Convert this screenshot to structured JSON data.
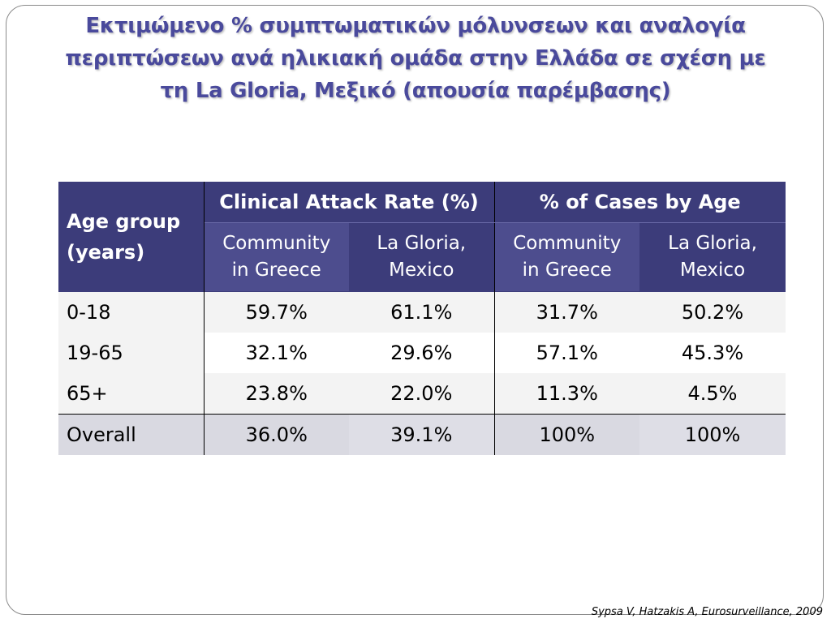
{
  "title_lines": [
    "Εκτιμώμενο % συμπτωματικών μόλυνσεων και αναλογία",
    "περιπτώσεων ανά ηλικιακή ομάδα στην Ελλάδα σε σχέση με",
    "τη La Gloria, Μεξικό (απουσία παρέμβασης)"
  ],
  "table": {
    "age_header": [
      "Age group",
      "(years)"
    ],
    "groups": [
      {
        "label": "Clinical Attack Rate (%)",
        "sub": [
          [
            "Community",
            "in Greece"
          ],
          [
            "La Gloria,",
            "Mexico"
          ]
        ]
      },
      {
        "label": "% of Cases by Age",
        "sub": [
          [
            "Community",
            "in Greece"
          ],
          [
            "La Gloria,",
            "Mexico"
          ]
        ]
      }
    ],
    "rows": [
      {
        "age": "0-18",
        "values": [
          "59.7%",
          "61.1%",
          "31.7%",
          "50.2%"
        ]
      },
      {
        "age": "19-65",
        "values": [
          "32.1%",
          "29.6%",
          "57.1%",
          "45.3%"
        ]
      },
      {
        "age": "65+",
        "values": [
          "23.8%",
          "22.0%",
          "11.3%",
          "4.5%"
        ]
      }
    ],
    "overall": {
      "age": "Overall",
      "values": [
        "36.0%",
        "39.1%",
        "100%",
        "100%"
      ]
    }
  },
  "citation": "Sypsa V, Hatzakis A, Eurosurveillance, 2009"
}
